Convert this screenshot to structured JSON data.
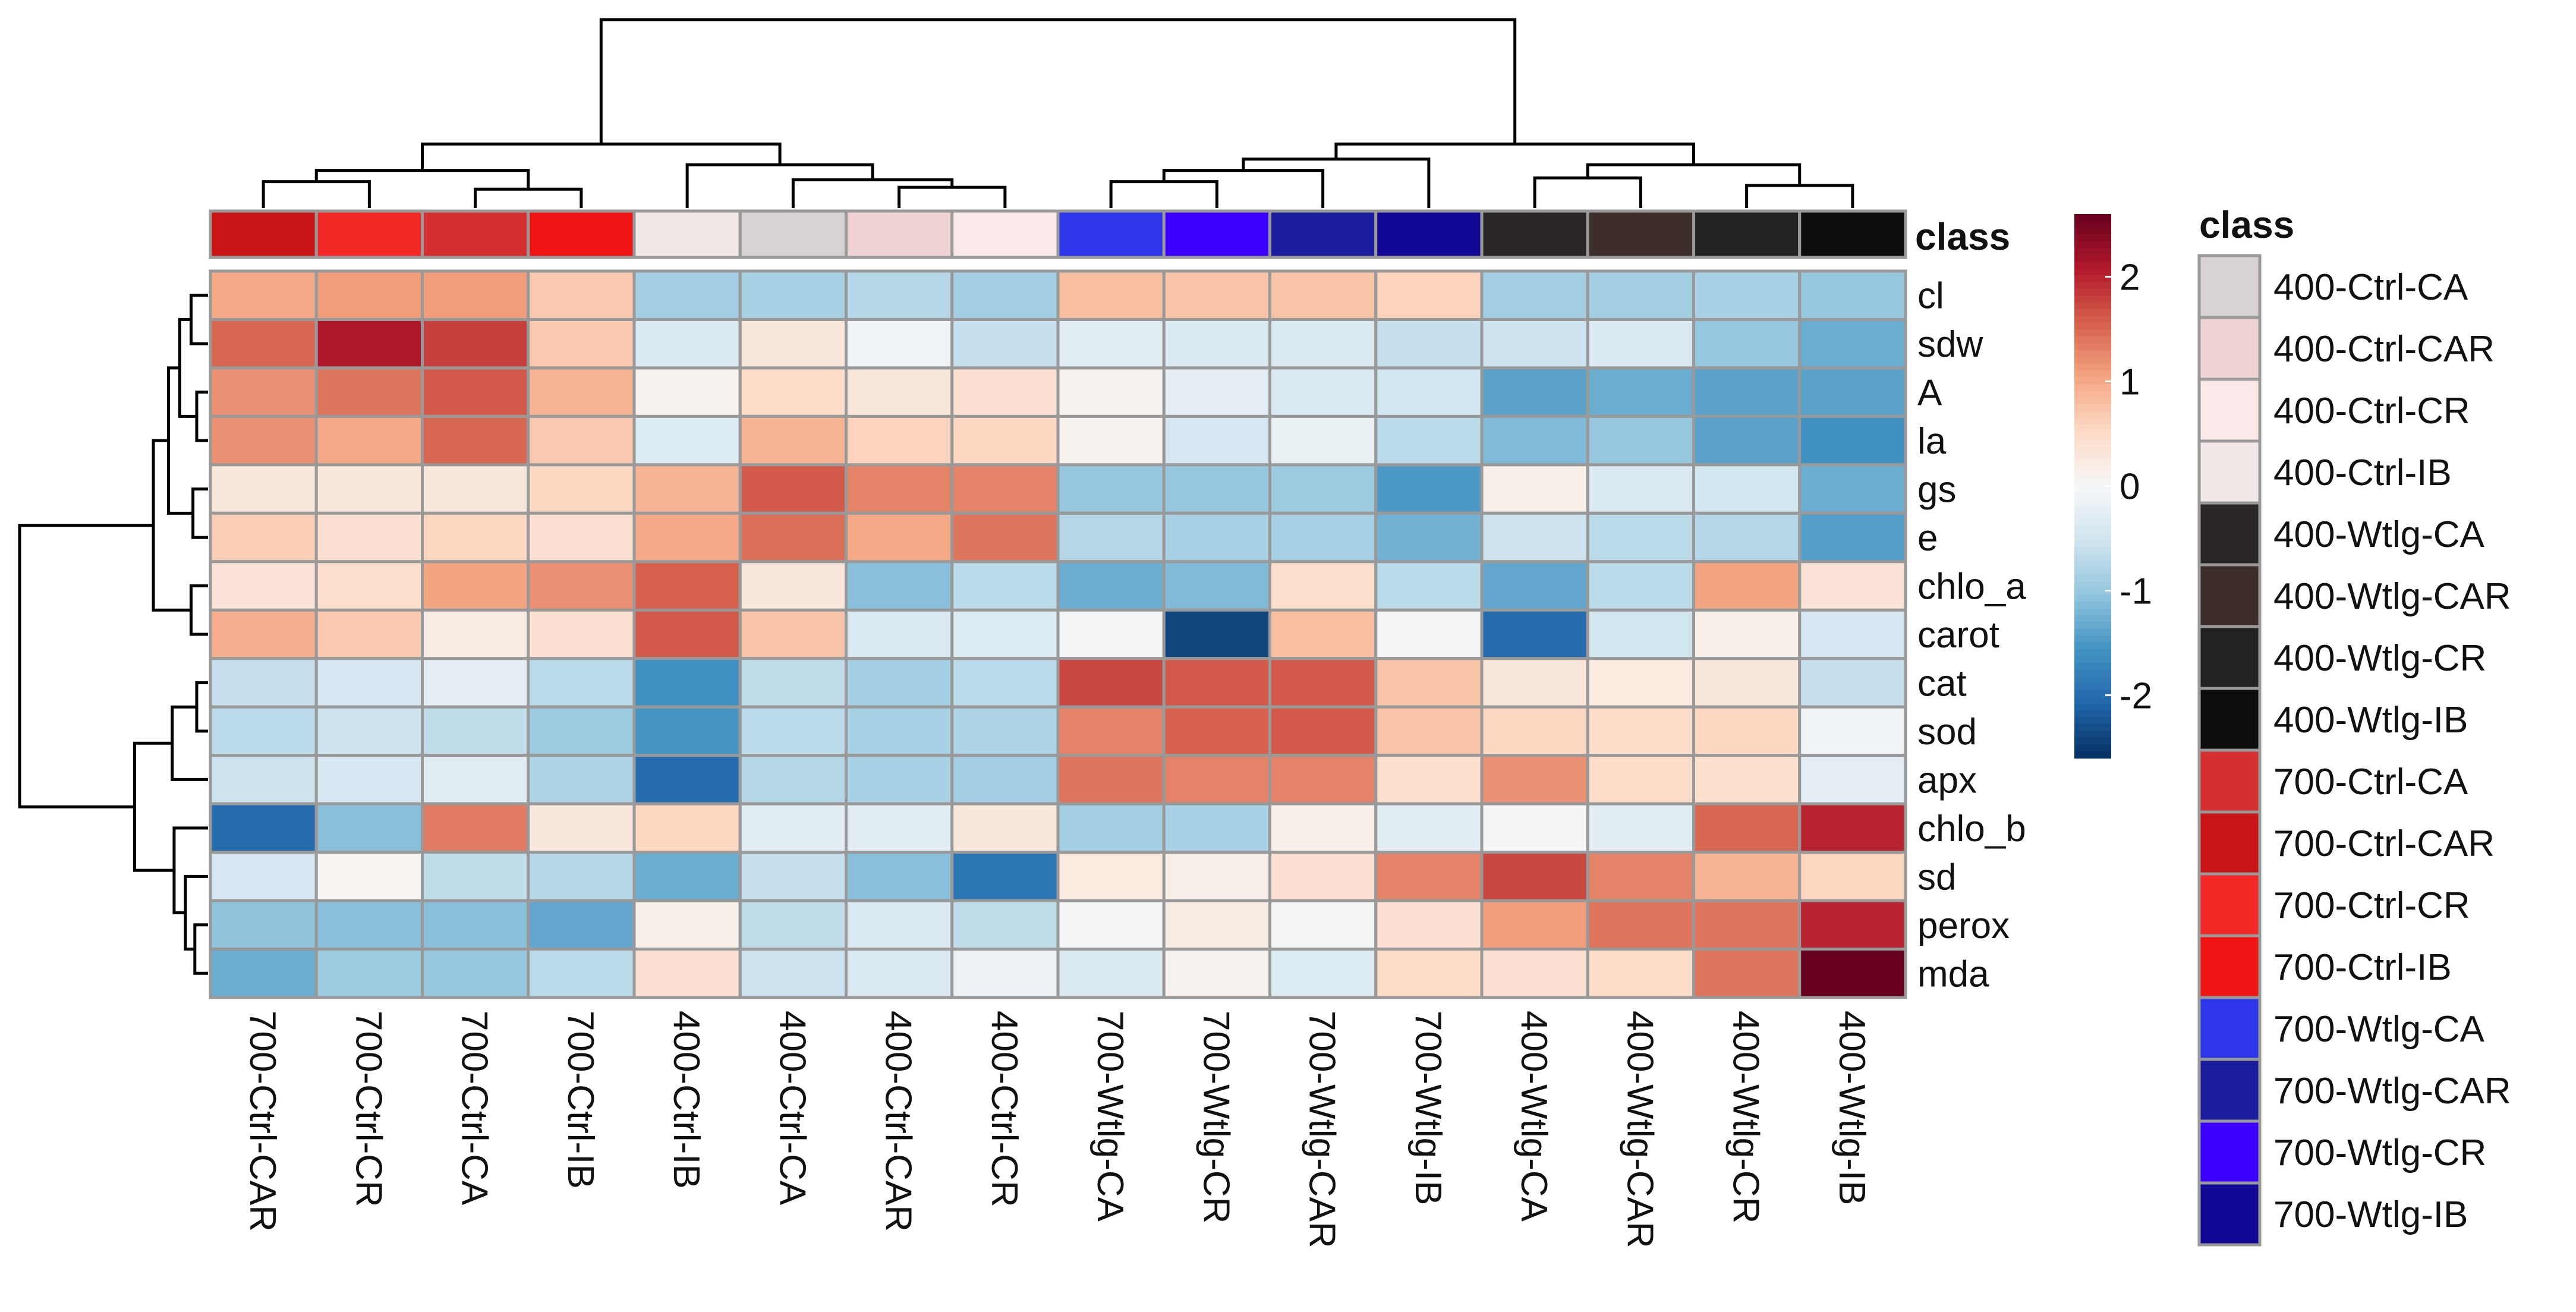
{
  "chart_data": {
    "type": "heatmap",
    "title": "",
    "rows": [
      "cl",
      "sdw",
      "A",
      "la",
      "gs",
      "e",
      "chlo_a",
      "carot",
      "cat",
      "sod",
      "apx",
      "chlo_b",
      "sd",
      "perox",
      "mda"
    ],
    "columns": [
      "700-Ctrl-CAR",
      "700-Ctrl-CR",
      "700-Ctrl-CA",
      "700-Ctrl-IB",
      "400-Ctrl-IB",
      "400-Ctrl-CA",
      "400-Ctrl-CAR",
      "400-Ctrl-CR",
      "700-Wtlg-CA",
      "700-Wtlg-CR",
      "700-Wtlg-CAR",
      "700-Wtlg-IB",
      "400-Wtlg-CA",
      "400-Wtlg-CAR",
      "400-Wtlg-CR",
      "400-Wtlg-IB"
    ],
    "values": [
      [
        1.0,
        1.1,
        1.1,
        0.7,
        -0.9,
        -0.85,
        -0.75,
        -0.9,
        0.8,
        0.75,
        0.75,
        0.6,
        -0.9,
        -0.9,
        -0.85,
        -1.0
      ],
      [
        1.5,
        2.1,
        1.8,
        0.7,
        -0.4,
        0.3,
        -0.1,
        -0.6,
        -0.3,
        -0.4,
        -0.4,
        -0.6,
        -0.55,
        -0.4,
        -1.0,
        -1.3
      ],
      [
        1.2,
        1.4,
        1.6,
        0.9,
        0.1,
        0.5,
        0.3,
        0.4,
        0.1,
        -0.25,
        -0.4,
        -0.5,
        -1.4,
        -1.3,
        -1.4,
        -1.4
      ],
      [
        1.2,
        1.0,
        1.5,
        0.7,
        -0.35,
        0.9,
        0.6,
        0.55,
        0.1,
        -0.45,
        -0.2,
        -0.7,
        -1.15,
        -1.0,
        -1.4,
        -1.6
      ],
      [
        0.3,
        0.3,
        0.3,
        0.55,
        0.9,
        1.6,
        1.3,
        1.3,
        -1.0,
        -1.0,
        -0.95,
        -1.5,
        0.15,
        -0.4,
        -0.5,
        -1.3
      ],
      [
        0.65,
        0.4,
        0.55,
        0.4,
        1.0,
        1.45,
        1.0,
        1.4,
        -0.75,
        -0.85,
        -0.85,
        -1.25,
        -0.55,
        -0.7,
        -0.75,
        -1.45
      ],
      [
        0.35,
        0.45,
        1.05,
        1.2,
        1.55,
        0.3,
        -1.1,
        -0.7,
        -1.3,
        -1.15,
        0.45,
        -0.7,
        -1.35,
        -0.7,
        1.05,
        0.35
      ],
      [
        0.95,
        0.7,
        0.2,
        0.4,
        1.6,
        0.75,
        -0.4,
        -0.35,
        -0.05,
        -2.4,
        0.8,
        -0.05,
        -2.0,
        -0.5,
        0.15,
        -0.45
      ],
      [
        -0.6,
        -0.45,
        -0.25,
        -0.7,
        -1.6,
        -0.65,
        -0.9,
        -0.7,
        1.75,
        1.6,
        1.6,
        0.75,
        0.3,
        0.25,
        0.3,
        -0.6
      ],
      [
        -0.7,
        -0.55,
        -0.65,
        -0.95,
        -1.55,
        -0.7,
        -0.85,
        -0.8,
        1.3,
        1.55,
        1.6,
        0.75,
        0.55,
        0.5,
        0.55,
        -0.1
      ],
      [
        -0.55,
        -0.45,
        -0.3,
        -0.8,
        -2.0,
        -0.75,
        -0.85,
        -0.9,
        1.4,
        1.3,
        1.3,
        0.45,
        1.2,
        0.5,
        0.45,
        -0.25
      ],
      [
        -2.0,
        -1.1,
        1.35,
        0.3,
        0.55,
        -0.3,
        -0.3,
        0.3,
        -0.9,
        -0.85,
        0.15,
        -0.3,
        -0.05,
        -0.3,
        1.5,
        2.0
      ],
      [
        -0.45,
        0.05,
        -0.65,
        -0.75,
        -1.3,
        -0.6,
        -1.1,
        -1.9,
        0.25,
        0.15,
        0.4,
        1.3,
        1.75,
        1.3,
        0.9,
        0.55
      ],
      [
        -1.05,
        -1.1,
        -1.1,
        -1.35,
        0.15,
        -0.65,
        -0.4,
        -0.65,
        -0.05,
        0.2,
        -0.05,
        0.4,
        1.1,
        1.4,
        1.4,
        2.0
      ],
      [
        -1.3,
        -0.95,
        -1.0,
        -0.7,
        0.4,
        -0.55,
        -0.4,
        -0.15,
        -0.4,
        0.1,
        -0.35,
        0.5,
        0.4,
        0.5,
        1.4,
        2.6
      ]
    ],
    "color_scale": {
      "min": -2.6,
      "max": 2.6,
      "ticks": [
        "2",
        "1",
        "0",
        "-1",
        "-2"
      ],
      "tick_values": [
        2,
        1,
        0,
        -1,
        -2
      ],
      "colors": [
        "#053061",
        "#2166ac",
        "#4393c3",
        "#92c5de",
        "#d1e5f0",
        "#f7f7f7",
        "#fddbc7",
        "#f4a582",
        "#d6604d",
        "#b2182b",
        "#67001f"
      ]
    },
    "annotation_title": "class",
    "column_class_colors": [
      "#c81414",
      "#f52828",
      "#d62f2f",
      "#f01414",
      "#f2e8e8",
      "#d9d2d2",
      "#efd3d5",
      "#fbe9e9",
      "#2d36e8",
      "#3c00ff",
      "#1a1e9e",
      "#110896",
      "#2a2626",
      "#3d2e2c",
      "#232220",
      "#0e0e0e"
    ],
    "legend": {
      "title": "class",
      "items": [
        {
          "label": "400-Ctrl-CA",
          "color": "#d9d2d2"
        },
        {
          "label": "400-Ctrl-CAR",
          "color": "#efd3d5"
        },
        {
          "label": "400-Ctrl-CR",
          "color": "#fbe9e9"
        },
        {
          "label": "400-Ctrl-IB",
          "color": "#f2e8e8"
        },
        {
          "label": "400-Wtlg-CA",
          "color": "#2a2626"
        },
        {
          "label": "400-Wtlg-CAR",
          "color": "#3d2e2c"
        },
        {
          "label": "400-Wtlg-CR",
          "color": "#232220"
        },
        {
          "label": "400-Wtlg-IB",
          "color": "#0e0e0e"
        },
        {
          "label": "700-Ctrl-CA",
          "color": "#d62f2f"
        },
        {
          "label": "700-Ctrl-CAR",
          "color": "#c81414"
        },
        {
          "label": "700-Ctrl-CR",
          "color": "#f52828"
        },
        {
          "label": "700-Ctrl-IB",
          "color": "#f01414"
        },
        {
          "label": "700-Wtlg-CA",
          "color": "#2d36e8"
        },
        {
          "label": "700-Wtlg-CAR",
          "color": "#1a1e9e"
        },
        {
          "label": "700-Wtlg-CR",
          "color": "#3c00ff"
        },
        {
          "label": "700-Wtlg-IB",
          "color": "#110896"
        }
      ]
    },
    "column_dendrogram": {
      "h": 10,
      "c": [
        {
          "h": 3.4,
          "c": [
            {
              "h": 2.0,
              "c": [
                {
                  "h": 1.4,
                  "c": [
                    0,
                    1
                  ]
                },
                {
                  "h": 1.0,
                  "c": [
                    2,
                    3
                  ]
                }
              ]
            },
            {
              "h": 2.3,
              "c": [
                4,
                {
                  "h": 1.5,
                  "c": [
                    5,
                    {
                      "h": 1.1,
                      "c": [
                        6,
                        7
                      ]
                    }
                  ]
                }
              ]
            }
          ]
        },
        {
          "h": 3.4,
          "c": [
            {
              "h": 2.6,
              "c": [
                {
                  "h": 2.0,
                  "c": [
                    {
                      "h": 1.4,
                      "c": [
                        8,
                        9
                      ]
                    },
                    10
                  ]
                },
                11
              ]
            },
            {
              "h": 2.3,
              "c": [
                {
                  "h": 1.6,
                  "c": [
                    12,
                    13
                  ]
                },
                {
                  "h": 1.2,
                  "c": [
                    14,
                    15
                  ]
                }
              ]
            }
          ]
        }
      ]
    },
    "row_dendrogram": {
      "h": 10,
      "c": [
        {
          "h": 2.9,
          "c": [
            {
              "h": 2.1,
              "c": [
                {
                  "h": 1.5,
                  "c": [
                    {
                      "h": 0.9,
                      "c": [
                        0,
                        1
                      ]
                    },
                    {
                      "h": 0.6,
                      "c": [
                        2,
                        3
                      ]
                    }
                  ]
                },
                {
                  "h": 0.8,
                  "c": [
                    4,
                    5
                  ]
                }
              ]
            },
            {
              "h": 0.9,
              "c": [
                6,
                7
              ]
            }
          ]
        },
        {
          "h": 3.9,
          "c": [
            {
              "h": 1.9,
              "c": [
                {
                  "h": 0.6,
                  "c": [
                    8,
                    9
                  ]
                },
                10
              ]
            },
            {
              "h": 1.8,
              "c": [
                11,
                {
                  "h": 1.2,
                  "c": [
                    12,
                    {
                      "h": 0.7,
                      "c": [
                        13,
                        14
                      ]
                    }
                  ]
                }
              ]
            }
          ]
        }
      ]
    }
  }
}
